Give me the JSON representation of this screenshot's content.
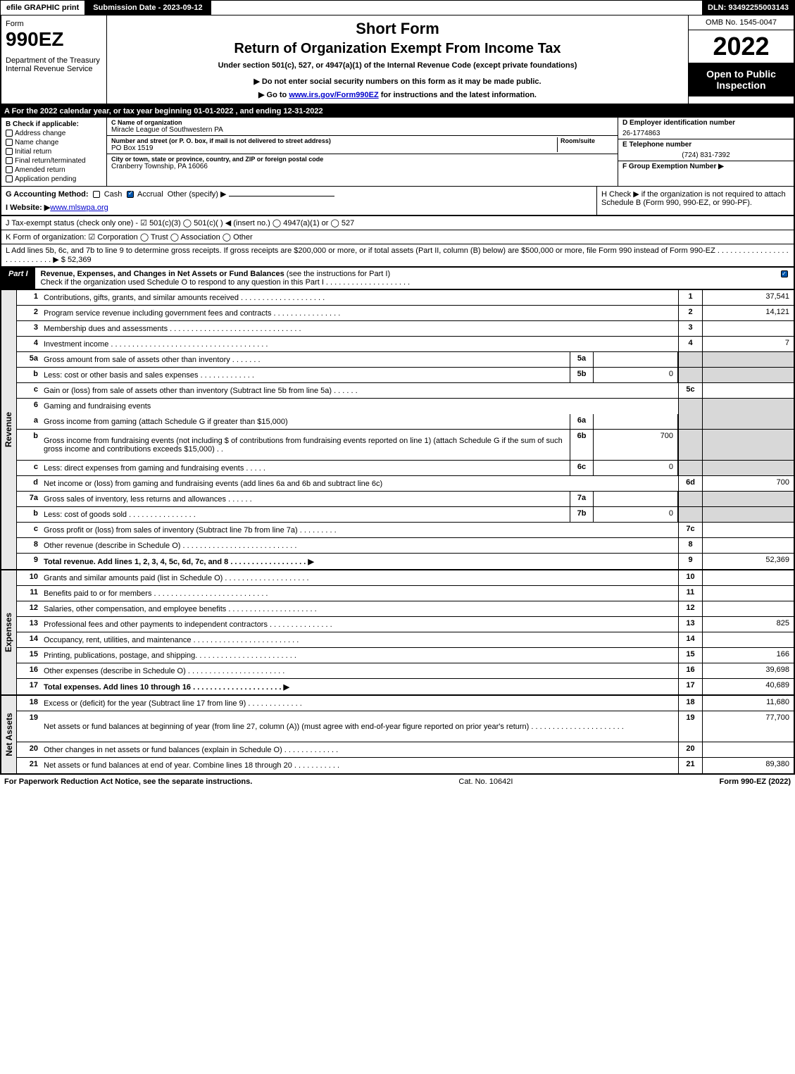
{
  "topbar": {
    "print": "efile GRAPHIC print",
    "submission": "Submission Date - 2023-09-12",
    "dln": "DLN: 93492255003143"
  },
  "header": {
    "form_word": "Form",
    "form_num": "990EZ",
    "dept": "Department of the Treasury\nInternal Revenue Service",
    "short_form": "Short Form",
    "title2": "Return of Organization Exempt From Income Tax",
    "sub1": "Under section 501(c), 527, or 4947(a)(1) of the Internal Revenue Code (except private foundations)",
    "sub2": "▶ Do not enter social security numbers on this form as it may be made public.",
    "sub3_pre": "▶ Go to ",
    "sub3_link": "www.irs.gov/Form990EZ",
    "sub3_post": " for instructions and the latest information.",
    "omb": "OMB No. 1545-0047",
    "year": "2022",
    "open": "Open to Public Inspection"
  },
  "rowA": "A  For the 2022 calendar year, or tax year beginning 01-01-2022 , and ending 12-31-2022",
  "B": {
    "label": "B",
    "check_if": "Check if applicable:",
    "opts": [
      "Address change",
      "Name change",
      "Initial return",
      "Final return/terminated",
      "Amended return",
      "Application pending"
    ]
  },
  "C": {
    "name_lbl": "C Name of organization",
    "name": "Miracle League of Southwestern PA",
    "addr_lbl": "Number and street (or P. O. box, if mail is not delivered to street address)",
    "room_lbl": "Room/suite",
    "addr": "PO Box 1519",
    "city_lbl": "City or town, state or province, country, and ZIP or foreign postal code",
    "city": "Cranberry Township, PA  16066"
  },
  "D": {
    "lbl": "D Employer identification number",
    "val": "26-1774863"
  },
  "E": {
    "lbl": "E Telephone number",
    "val": "(724) 831-7392"
  },
  "F": {
    "lbl": "F Group Exemption Number  ▶"
  },
  "G": {
    "lbl": "G Accounting Method:",
    "cash": "Cash",
    "accrual": "Accrual",
    "other": "Other (specify) ▶"
  },
  "H": {
    "txt": "H  Check ▶    if the organization is not required to attach Schedule B (Form 990, 990-EZ, or 990-PF)."
  },
  "I": {
    "pre": "I Website: ▶",
    "link": "www.mlswpa.org"
  },
  "J": "J Tax-exempt status (check only one) - ☑ 501(c)(3)  ◯ 501(c)(  ) ◀ (insert no.)  ◯ 4947(a)(1) or  ◯ 527",
  "K": "K Form of organization:  ☑ Corporation  ◯ Trust  ◯ Association  ◯ Other",
  "L": {
    "txt": "L Add lines 5b, 6c, and 7b to line 9 to determine gross receipts. If gross receipts are $200,000 or more, or if total assets (Part II, column (B) below) are $500,000 or more, file Form 990 instead of Form 990-EZ  . . . . . . . . . . . . . . . . . . . . . . . . . . . . ▶ $ ",
    "val": "52,369"
  },
  "part1": {
    "tag": "Part I",
    "title": "Revenue, Expenses, and Changes in Net Assets or Fund Balances",
    "title2": " (see the instructions for Part I)",
    "sub": "Check if the organization used Schedule O to respond to any question in this Part I . . . . . . . . . . . . . . . . . . . ."
  },
  "sideLabels": {
    "rev": "Revenue",
    "exp": "Expenses",
    "na": "Net Assets"
  },
  "revLines": [
    {
      "n": "1",
      "d": "Contributions, gifts, grants, and similar amounts received . . . . . . . . . . . . . . . . . . . .",
      "rn": "1",
      "rv": "37,541"
    },
    {
      "n": "2",
      "d": "Program service revenue including government fees and contracts . . . . . . . . . . . . . . . .",
      "rn": "2",
      "rv": "14,121"
    },
    {
      "n": "3",
      "d": "Membership dues and assessments . . . . . . . . . . . . . . . . . . . . . . . . . . . . . . .",
      "rn": "3",
      "rv": ""
    },
    {
      "n": "4",
      "d": "Investment income . . . . . . . . . . . . . . . . . . . . . . . . . . . . . . . . . . . . .",
      "rn": "4",
      "rv": "7"
    },
    {
      "n": "5a",
      "d": "Gross amount from sale of assets other than inventory . . . . . . .",
      "mn": "5a",
      "mv": "",
      "shade": true
    },
    {
      "n": "b",
      "d": "Less: cost or other basis and sales expenses . . . . . . . . . . . . .",
      "mn": "5b",
      "mv": "0",
      "shade": true
    },
    {
      "n": "c",
      "d": "Gain or (loss) from sale of assets other than inventory (Subtract line 5b from line 5a) . . . . . .",
      "rn": "5c",
      "rv": ""
    },
    {
      "n": "6",
      "d": "Gaming and fundraising events",
      "shade": true,
      "noline": true
    },
    {
      "n": "a",
      "d": "Gross income from gaming (attach Schedule G if greater than $15,000)",
      "mn": "6a",
      "mv": "",
      "shade": true
    },
    {
      "n": "b",
      "d": "Gross income from fundraising events (not including $                  of contributions from fundraising events reported on line 1) (attach Schedule G if the sum of such gross income and contributions exceeds $15,000)  . .",
      "mn": "6b",
      "mv": "700",
      "shade": true,
      "tall": true
    },
    {
      "n": "c",
      "d": "Less: direct expenses from gaming and fundraising events   . . . . .",
      "mn": "6c",
      "mv": "0",
      "shade": true
    },
    {
      "n": "d",
      "d": "Net income or (loss) from gaming and fundraising events (add lines 6a and 6b and subtract line 6c)",
      "rn": "6d",
      "rv": "700"
    },
    {
      "n": "7a",
      "d": "Gross sales of inventory, less returns and allowances . . . . . .",
      "mn": "7a",
      "mv": "",
      "shade": true
    },
    {
      "n": "b",
      "d": "Less: cost of goods sold       . . . . . . . . . . . . . . . .",
      "mn": "7b",
      "mv": "0",
      "shade": true
    },
    {
      "n": "c",
      "d": "Gross profit or (loss) from sales of inventory (Subtract line 7b from line 7a) . . . . . . . . .",
      "rn": "7c",
      "rv": ""
    },
    {
      "n": "8",
      "d": "Other revenue (describe in Schedule O) . . . . . . . . . . . . . . . . . . . . . . . . . . .",
      "rn": "8",
      "rv": ""
    },
    {
      "n": "9",
      "d": "Total revenue. Add lines 1, 2, 3, 4, 5c, 6d, 7c, and 8  . . . . . . . . . . . . . . . . . . ▶",
      "rn": "9",
      "rv": "52,369",
      "bold": true
    }
  ],
  "expLines": [
    {
      "n": "10",
      "d": "Grants and similar amounts paid (list in Schedule O) . . . . . . . . . . . . . . . . . . . .",
      "rn": "10",
      "rv": ""
    },
    {
      "n": "11",
      "d": "Benefits paid to or for members      . . . . . . . . . . . . . . . . . . . . . . . . . . .",
      "rn": "11",
      "rv": ""
    },
    {
      "n": "12",
      "d": "Salaries, other compensation, and employee benefits . . . . . . . . . . . . . . . . . . . . .",
      "rn": "12",
      "rv": ""
    },
    {
      "n": "13",
      "d": "Professional fees and other payments to independent contractors . . . . . . . . . . . . . . .",
      "rn": "13",
      "rv": "825"
    },
    {
      "n": "14",
      "d": "Occupancy, rent, utilities, and maintenance . . . . . . . . . . . . . . . . . . . . . . . . .",
      "rn": "14",
      "rv": ""
    },
    {
      "n": "15",
      "d": "Printing, publications, postage, and shipping. . . . . . . . . . . . . . . . . . . . . . . .",
      "rn": "15",
      "rv": "166"
    },
    {
      "n": "16",
      "d": "Other expenses (describe in Schedule O)     . . . . . . . . . . . . . . . . . . . . . . .",
      "rn": "16",
      "rv": "39,698"
    },
    {
      "n": "17",
      "d": "Total expenses. Add lines 10 through 16     . . . . . . . . . . . . . . . . . . . . . ▶",
      "rn": "17",
      "rv": "40,689",
      "bold": true
    }
  ],
  "naLines": [
    {
      "n": "18",
      "d": "Excess or (deficit) for the year (Subtract line 17 from line 9)        . . . . . . . . . . . . .",
      "rn": "18",
      "rv": "11,680"
    },
    {
      "n": "19",
      "d": "Net assets or fund balances at beginning of year (from line 27, column (A)) (must agree with end-of-year figure reported on prior year's return) . . . . . . . . . . . . . . . . . . . . . .",
      "rn": "19",
      "rv": "77,700",
      "tall": true
    },
    {
      "n": "20",
      "d": "Other changes in net assets or fund balances (explain in Schedule O) . . . . . . . . . . . . .",
      "rn": "20",
      "rv": ""
    },
    {
      "n": "21",
      "d": "Net assets or fund balances at end of year. Combine lines 18 through 20 . . . . . . . . . . .",
      "rn": "21",
      "rv": "89,380"
    }
  ],
  "footer": {
    "left": "For Paperwork Reduction Act Notice, see the separate instructions.",
    "mid": "Cat. No. 10642I",
    "right": "Form 990-EZ (2022)"
  }
}
